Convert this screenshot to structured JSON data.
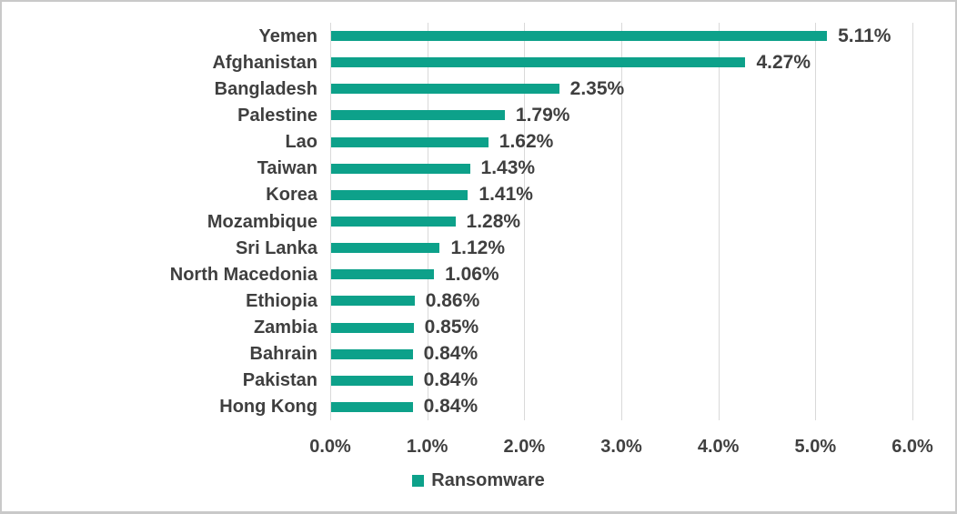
{
  "chart_data": {
    "type": "bar",
    "orientation": "horizontal",
    "title": "",
    "xlabel": "",
    "ylabel": "",
    "categories": [
      "Yemen",
      "Afghanistan",
      "Bangladesh",
      "Palestine",
      "Lao",
      "Taiwan",
      "Korea",
      "Mozambique",
      "Sri Lanka",
      "North Macedonia",
      "Ethiopia",
      "Zambia",
      "Bahrain",
      "Pakistan",
      "Hong Kong"
    ],
    "series": [
      {
        "name": "Ransomware",
        "values": [
          5.11,
          4.27,
          2.35,
          1.79,
          1.62,
          1.43,
          1.41,
          1.28,
          1.12,
          1.06,
          0.86,
          0.85,
          0.84,
          0.84,
          0.84
        ],
        "value_labels": [
          "5.11%",
          "4.27%",
          "2.35%",
          "1.79%",
          "1.62%",
          "1.43%",
          "1.41%",
          "1.28%",
          "1.12%",
          "1.06%",
          "0.86%",
          "0.85%",
          "0.84%",
          "0.84%",
          "0.84%"
        ]
      }
    ],
    "xlim": [
      0,
      6
    ],
    "x_ticks": [
      0,
      1,
      2,
      3,
      4,
      5,
      6
    ],
    "x_tick_labels": [
      "0.0%",
      "1.0%",
      "2.0%",
      "3.0%",
      "4.0%",
      "5.0%",
      "6.0%"
    ],
    "grid": "vertical-gridlines-on",
    "legend_position": "bottom-center",
    "colors": {
      "bar": "#0da18a",
      "label_text": "#3f3f3f",
      "tick_text": "#404040",
      "gridline": "#d9d9d9",
      "background": "#ffffff",
      "frame_border": "#c9c9c9"
    }
  },
  "legend": {
    "items": [
      {
        "label": "Ransomware",
        "color": "#0da18a"
      }
    ]
  }
}
